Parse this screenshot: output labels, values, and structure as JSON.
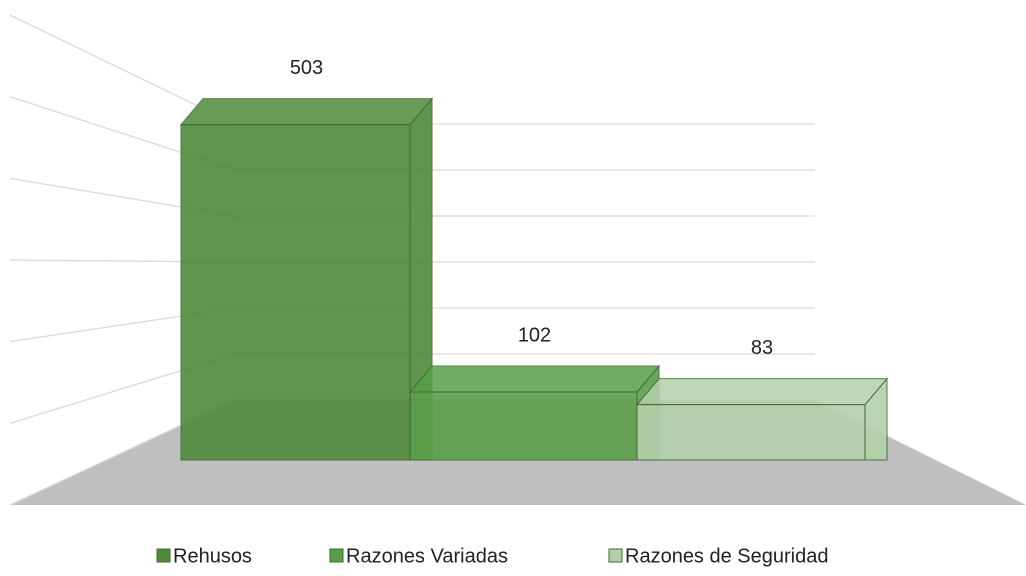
{
  "chart_data": {
    "type": "bar3d",
    "series": [
      {
        "name": "Rehusos",
        "color": "#4f8a3c",
        "values": [
          503
        ]
      },
      {
        "name": "Razones Variadas",
        "color": "#5b9e4a",
        "values": [
          102
        ]
      },
      {
        "name": "Razones de Seguridad",
        "color": "#b4d0ab",
        "values": [
          83
        ]
      }
    ],
    "ylim": [
      0,
      600
    ],
    "yticks": [
      0,
      100,
      200,
      300,
      400,
      500,
      600
    ],
    "grid": true,
    "legend": "bottom"
  }
}
